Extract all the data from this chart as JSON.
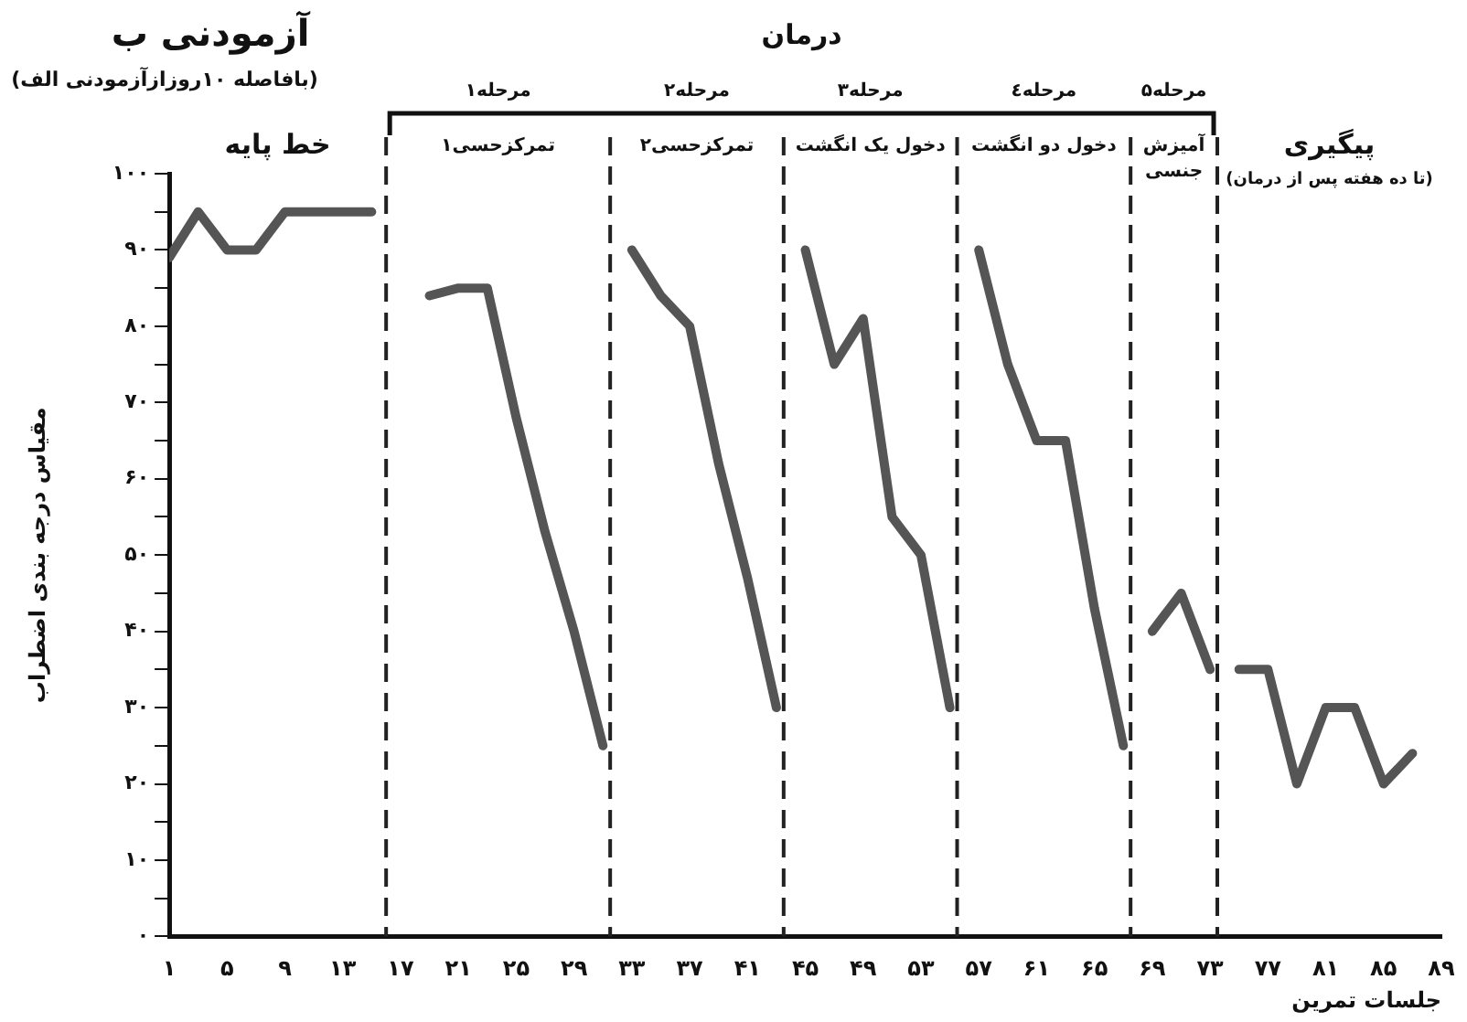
{
  "chart_data": {
    "type": "line",
    "title": "آزمودنی ب",
    "subtitle": "(بافاصله ۱۰روزازآزمودنی الف)",
    "xlabel": "جلسات تمرین",
    "ylabel": "مقیاس درجه بندی اضطراب",
    "x": [
      1,
      3,
      5,
      7,
      9,
      11,
      13,
      15,
      16,
      19,
      21,
      23,
      25,
      27,
      29,
      31,
      32,
      33,
      35,
      37,
      39,
      41,
      43,
      44,
      45,
      47,
      49,
      51,
      53,
      55,
      56,
      57,
      59,
      61,
      63,
      65,
      67,
      68,
      69,
      71,
      73,
      74,
      75,
      77,
      79,
      81,
      83,
      85,
      87
    ],
    "values": [
      89,
      95,
      90,
      90,
      95,
      95,
      95,
      95,
      null,
      84,
      85,
      85,
      68,
      53,
      40,
      25,
      null,
      90,
      84,
      80,
      62,
      47,
      30,
      null,
      90,
      75,
      81,
      55,
      50,
      30,
      null,
      90,
      75,
      65,
      65,
      43,
      25,
      null,
      40,
      45,
      35,
      null,
      35,
      35,
      20,
      30,
      30,
      20,
      24
    ],
    "color": "#555555",
    "marker": "none",
    "line_style": "solid",
    "grid": false,
    "legend": false,
    "xlim": [
      1,
      89
    ],
    "ylim": [
      0,
      100
    ],
    "xticks": [
      {
        "value": 1,
        "label": "۱"
      },
      {
        "value": 5,
        "label": "۵"
      },
      {
        "value": 9,
        "label": "۹"
      },
      {
        "value": 13,
        "label": "۱۳"
      },
      {
        "value": 17,
        "label": "۱۷"
      },
      {
        "value": 21,
        "label": "۲۱"
      },
      {
        "value": 25,
        "label": "۲۵"
      },
      {
        "value": 29,
        "label": "۲۹"
      },
      {
        "value": 33,
        "label": "۳۳"
      },
      {
        "value": 37,
        "label": "۳۷"
      },
      {
        "value": 41,
        "label": "۴۱"
      },
      {
        "value": 45,
        "label": "۴۵"
      },
      {
        "value": 49,
        "label": "۴۹"
      },
      {
        "value": 53,
        "label": "۵۳"
      },
      {
        "value": 57,
        "label": "۵۷"
      },
      {
        "value": 61,
        "label": "۶۱"
      },
      {
        "value": 65,
        "label": "۶۵"
      },
      {
        "value": 69,
        "label": "۶۹"
      },
      {
        "value": 73,
        "label": "۷۳"
      },
      {
        "value": 77,
        "label": "۷۷"
      },
      {
        "value": 81,
        "label": "۸۱"
      },
      {
        "value": 85,
        "label": "۸۵"
      },
      {
        "value": 89,
        "label": "۸۹"
      }
    ],
    "yticks": [
      {
        "value": 0,
        "label": "۰"
      },
      {
        "value": 5,
        "label": null
      },
      {
        "value": 10,
        "label": "۱۰"
      },
      {
        "value": 15,
        "label": null
      },
      {
        "value": 20,
        "label": "۲۰"
      },
      {
        "value": 25,
        "label": null
      },
      {
        "value": 30,
        "label": "۳۰"
      },
      {
        "value": 35,
        "label": null
      },
      {
        "value": 40,
        "label": "۴۰"
      },
      {
        "value": 45,
        "label": null
      },
      {
        "value": 50,
        "label": "۵۰"
      },
      {
        "value": 55,
        "label": null
      },
      {
        "value": 60,
        "label": "۶۰"
      },
      {
        "value": 65,
        "label": null
      },
      {
        "value": 70,
        "label": "۷۰"
      },
      {
        "value": 75,
        "label": null
      },
      {
        "value": 80,
        "label": "۸۰"
      },
      {
        "value": 85,
        "label": null
      },
      {
        "value": 90,
        "label": "۹۰"
      },
      {
        "value": 95,
        "label": null
      },
      {
        "value": 100,
        "label": "۱۰۰"
      }
    ],
    "ref_lines": [
      {
        "axis": "x",
        "value": 16,
        "line_style": "dashed"
      },
      {
        "axis": "x",
        "value": 31.5,
        "line_style": "dashed"
      },
      {
        "axis": "x",
        "value": 43.5,
        "line_style": "dashed"
      },
      {
        "axis": "x",
        "value": 55.5,
        "line_style": "dashed"
      },
      {
        "axis": "x",
        "value": 67.5,
        "line_style": "dashed"
      },
      {
        "axis": "x",
        "value": 73.5,
        "line_style": "dashed"
      }
    ],
    "annotations": [
      "خط پایه",
      "درمان",
      "مرحله۱\nتمرکزحسی۱",
      "مرحله۲\nتمرکزحسی۲",
      "مرحله۳\nدخول یک انگشت",
      "مرحله٤\nدخول دو انگشت",
      "مرحله۵\nآمیزش\nجنسی",
      "پیگیری\n(تا ده هفته پس از درمان)"
    ]
  }
}
